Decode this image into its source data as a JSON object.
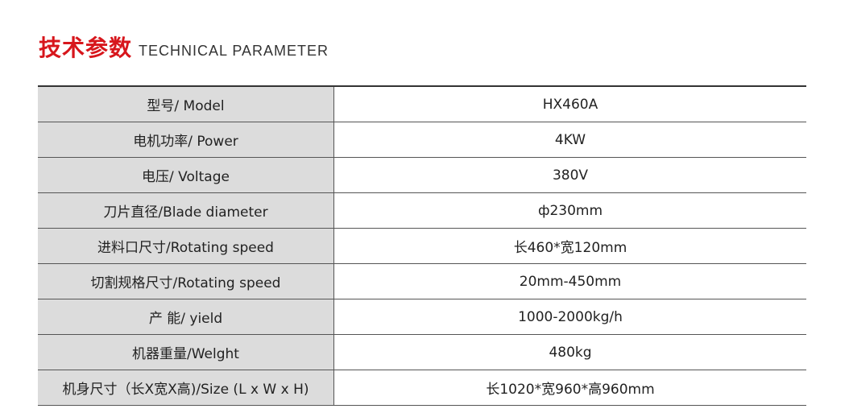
{
  "header": {
    "title_cn": "技术参数",
    "title_en": "TECHNICAL PARAMETER"
  },
  "rows": [
    {
      "label": "型号/ Model",
      "value": "HX460A"
    },
    {
      "label": "电机功率/ Power",
      "value": "4KW"
    },
    {
      "label": "电压/ Voltage",
      "value": "380V"
    },
    {
      "label": "刀片直径/Blade diameter",
      "value": "ф230mm"
    },
    {
      "label": "进料口尺寸/Rotating speed",
      "value": "长460*宽120mm"
    },
    {
      "label": "切割规格尺寸/Rotating speed",
      "value": "20mm-450mm"
    },
    {
      "label": "产 能/ yield",
      "value": "1000-2000kg/h"
    },
    {
      "label": "机器重量/Welght",
      "value": "480kg"
    },
    {
      "label": "机身尺寸（长X宽X高)/Size (L x W x H)",
      "value": "长1020*宽960*高960mm"
    }
  ]
}
